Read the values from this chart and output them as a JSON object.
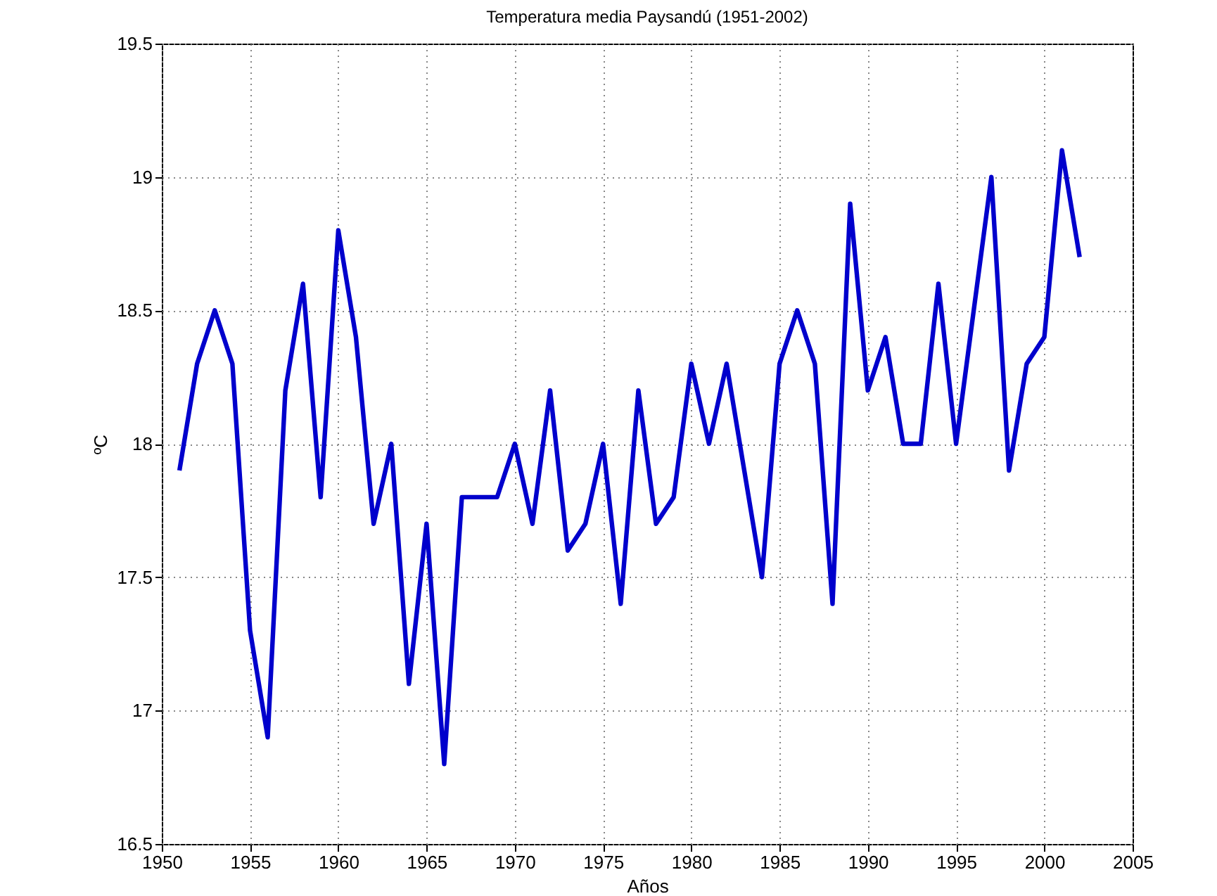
{
  "chart_data": {
    "type": "line",
    "title": "Temperatura media Paysandú (1951-2002)",
    "xlabel": "Años",
    "ylabel": "ºC",
    "x": [
      1951,
      1952,
      1953,
      1954,
      1955,
      1956,
      1957,
      1958,
      1959,
      1960,
      1961,
      1962,
      1963,
      1964,
      1965,
      1966,
      1967,
      1968,
      1969,
      1970,
      1971,
      1972,
      1973,
      1974,
      1975,
      1976,
      1977,
      1978,
      1979,
      1980,
      1981,
      1982,
      1983,
      1984,
      1985,
      1986,
      1987,
      1988,
      1989,
      1990,
      1991,
      1992,
      1993,
      1994,
      1995,
      1996,
      1997,
      1998,
      1999,
      2000,
      2001,
      2002
    ],
    "series": [
      {
        "color": "#0000cc",
        "values": [
          17.9,
          18.3,
          18.5,
          18.3,
          17.3,
          16.9,
          18.2,
          18.6,
          17.8,
          18.8,
          18.4,
          17.7,
          18.0,
          17.1,
          17.7,
          16.8,
          17.8,
          17.8,
          17.8,
          18.0,
          17.7,
          18.2,
          17.6,
          17.7,
          18.0,
          17.4,
          18.2,
          17.7,
          17.8,
          18.3,
          18.0,
          18.3,
          17.9,
          17.5,
          18.3,
          18.5,
          18.3,
          17.4,
          18.9,
          18.2,
          18.4,
          18.0,
          18.0,
          18.6,
          18.0,
          18.5,
          19.0,
          17.9,
          18.3,
          18.4,
          19.1,
          18.7
        ]
      }
    ],
    "xlim": [
      1950,
      2005
    ],
    "xticks": [
      1950,
      1955,
      1960,
      1965,
      1970,
      1975,
      1980,
      1985,
      1990,
      1995,
      2000,
      2005
    ],
    "ylim": [
      16.5,
      19.5
    ],
    "yticks": [
      16.5,
      17,
      17.5,
      18,
      18.5,
      19,
      19.5
    ],
    "grid": true,
    "line_style": "solid",
    "marker": "none"
  }
}
